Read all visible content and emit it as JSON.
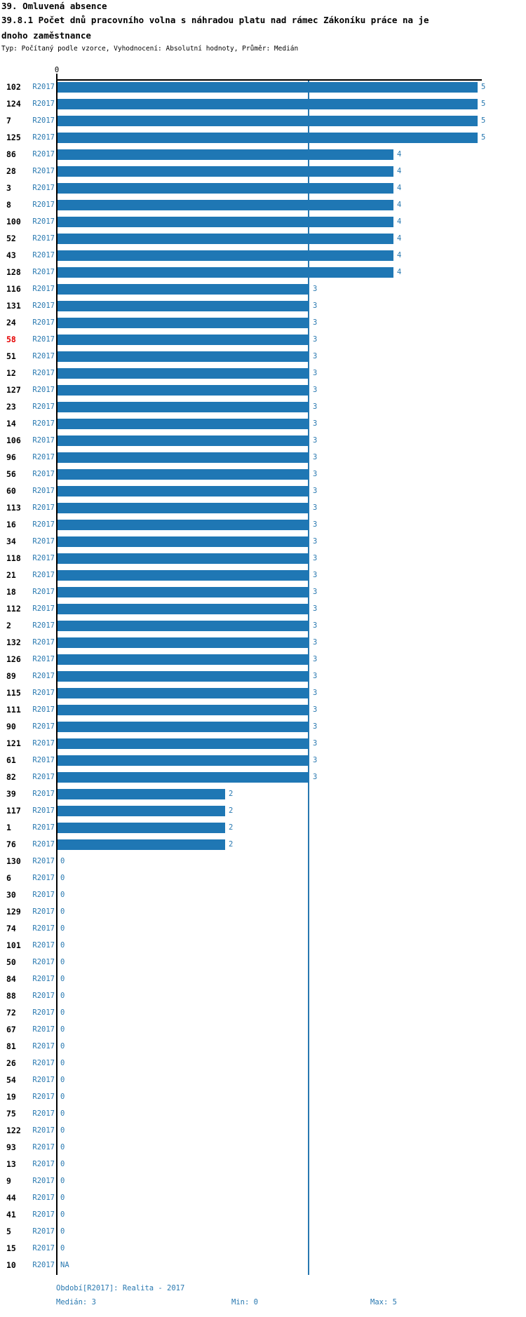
{
  "header": {
    "title": "39. Omluvená absence",
    "subtitle_line1": "39.8.1 Počet dnů pracovního volna s náhradou platu nad rámec Zákoníku práce na je",
    "subtitle_line2": "dnoho zaměstnance",
    "meta": "Typ: Počítaný podle vzorce, Vyhodnocení: Absolutní hodnoty, Průměr: Medián"
  },
  "axis": {
    "origin_label": "0"
  },
  "series_label": "R2017",
  "highlight_ids": [
    "58"
  ],
  "footer": {
    "period": "Období[R2017]: Realita - 2017",
    "median": "Medián: 3",
    "min": "Min: 0",
    "max": "Max: 5"
  },
  "colors": {
    "bar": "#1f77b4",
    "text_blue": "#2878b0",
    "highlight_red": "#e60000",
    "axis_black": "#000000"
  },
  "chart_data": {
    "type": "bar",
    "orientation": "horizontal",
    "title": "39.8.1 Počet dnů pracovního volna s náhradou platu nad rámec Zákoníku práce na jednoho zaměstnance",
    "xlabel": "",
    "ylabel": "",
    "xlim": [
      0,
      5
    ],
    "grid": false,
    "legend_position": "none",
    "median_line_value": 3,
    "median": 3,
    "min": 0,
    "max": 5,
    "categories": [
      "102",
      "124",
      "7",
      "125",
      "86",
      "28",
      "3",
      "8",
      "100",
      "52",
      "43",
      "128",
      "116",
      "131",
      "24",
      "58",
      "51",
      "12",
      "127",
      "23",
      "14",
      "106",
      "96",
      "56",
      "60",
      "113",
      "16",
      "34",
      "118",
      "21",
      "18",
      "112",
      "2",
      "132",
      "126",
      "89",
      "115",
      "111",
      "90",
      "121",
      "61",
      "82",
      "39",
      "117",
      "1",
      "76",
      "130",
      "6",
      "30",
      "129",
      "74",
      "101",
      "50",
      "84",
      "88",
      "72",
      "67",
      "81",
      "26",
      "54",
      "19",
      "75",
      "122",
      "93",
      "13",
      "9",
      "44",
      "41",
      "5",
      "15",
      "10"
    ],
    "series": [
      {
        "name": "R2017",
        "values": [
          5,
          5,
          5,
          5,
          4,
          4,
          4,
          4,
          4,
          4,
          4,
          4,
          3,
          3,
          3,
          3,
          3,
          3,
          3,
          3,
          3,
          3,
          3,
          3,
          3,
          3,
          3,
          3,
          3,
          3,
          3,
          3,
          3,
          3,
          3,
          3,
          3,
          3,
          3,
          3,
          3,
          3,
          2,
          2,
          2,
          2,
          0,
          0,
          0,
          0,
          0,
          0,
          0,
          0,
          0,
          0,
          0,
          0,
          0,
          0,
          0,
          0,
          0,
          0,
          0,
          0,
          0,
          0,
          0,
          0,
          "NA"
        ]
      }
    ]
  }
}
